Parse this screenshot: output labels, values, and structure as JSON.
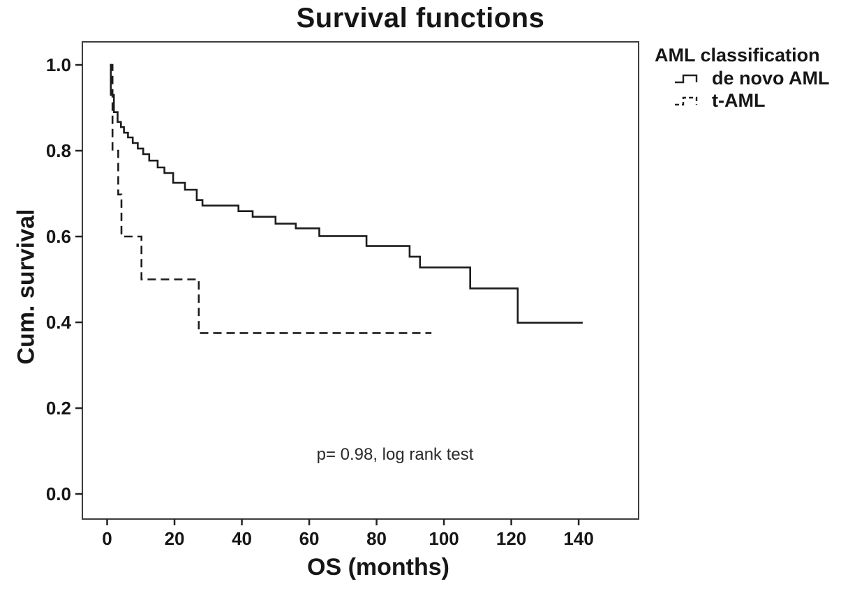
{
  "chart_data": {
    "type": "line",
    "subtype": "kaplan-meier-step",
    "title": "Survival functions",
    "xlabel": "OS (months)",
    "ylabel": "Cum. survival",
    "annotation": "p= 0.98, log rank test",
    "grid": false,
    "xlim": [
      -7.36,
      157.8
    ],
    "ylim": [
      -0.0585,
      1.0537
    ],
    "x_ticks": [
      {
        "v": 0,
        "label": "0"
      },
      {
        "v": 20,
        "label": "20"
      },
      {
        "v": 40,
        "label": "40"
      },
      {
        "v": 60,
        "label": "60"
      },
      {
        "v": 80,
        "label": "80"
      },
      {
        "v": 100,
        "label": "100"
      },
      {
        "v": 120,
        "label": "120"
      },
      {
        "v": 140,
        "label": "140"
      }
    ],
    "y_ticks": [
      {
        "v": 0.0,
        "label": "0.0"
      },
      {
        "v": 0.2,
        "label": "0.2"
      },
      {
        "v": 0.4,
        "label": "0.4"
      },
      {
        "v": 0.6,
        "label": "0.6"
      },
      {
        "v": 0.8,
        "label": "0.8"
      },
      {
        "v": 1.0,
        "label": "1.0"
      }
    ],
    "legend": {
      "title": "AML classification",
      "position": "outside-top-right",
      "entries": [
        {
          "label": "de novo AML",
          "line_style": "solid"
        },
        {
          "label": "t-AML",
          "line_style": "dashed"
        }
      ]
    },
    "colors": {
      "line": "#1c1c1c",
      "frame": "#3d3d3d",
      "background": "#ffffff"
    },
    "series": [
      {
        "name": "de novo AML",
        "line_style": "solid",
        "color": "#1c1c1c",
        "end_x": 141.2,
        "points": [
          [
            0.8,
            1.0
          ],
          [
            1.1,
            0.93
          ],
          [
            2.0,
            0.89
          ],
          [
            3.1,
            0.867
          ],
          [
            4.1,
            0.855
          ],
          [
            5.0,
            0.842
          ],
          [
            6.2,
            0.831
          ],
          [
            7.6,
            0.818
          ],
          [
            9.1,
            0.805
          ],
          [
            10.7,
            0.792
          ],
          [
            12.5,
            0.777
          ],
          [
            15.0,
            0.761
          ],
          [
            17.0,
            0.748
          ],
          [
            19.6,
            0.725
          ],
          [
            23.1,
            0.709
          ],
          [
            26.6,
            0.685
          ],
          [
            28.3,
            0.672
          ],
          [
            39.0,
            0.659
          ],
          [
            43.2,
            0.646
          ],
          [
            50.0,
            0.63
          ],
          [
            56.0,
            0.619
          ],
          [
            63.0,
            0.601
          ],
          [
            77.0,
            0.578
          ],
          [
            89.8,
            0.553
          ],
          [
            92.9,
            0.528
          ],
          [
            107.8,
            0.479
          ],
          [
            121.9,
            0.399
          ]
        ]
      },
      {
        "name": "t-AML",
        "line_style": "dashed",
        "color": "#1c1c1c",
        "end_x": 96.3,
        "points": [
          [
            0.9,
            1.0
          ],
          [
            1.6,
            0.8
          ],
          [
            3.3,
            0.698
          ],
          [
            4.25,
            0.6
          ],
          [
            10.2,
            0.5
          ],
          [
            27.2,
            0.375
          ]
        ]
      }
    ]
  }
}
